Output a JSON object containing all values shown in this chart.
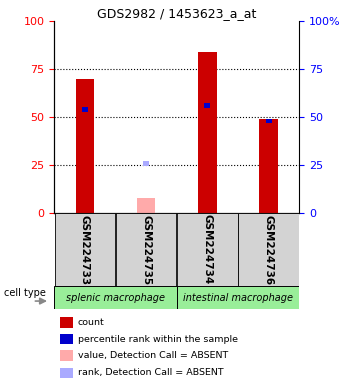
{
  "title": "GDS2982 / 1453623_a_at",
  "samples": [
    "GSM224733",
    "GSM224735",
    "GSM224734",
    "GSM224736"
  ],
  "bar_values": [
    70,
    8,
    84,
    49
  ],
  "bar_absent": [
    false,
    true,
    false,
    false
  ],
  "rank_values": [
    54,
    26,
    56,
    48
  ],
  "rank_absent": [
    false,
    true,
    false,
    false
  ],
  "bar_color": "#cc0000",
  "bar_absent_color": "#ffaaaa",
  "rank_color": "#0000cc",
  "rank_absent_color": "#aaaaff",
  "ylim": [
    0,
    100
  ],
  "group_labels": [
    "splenic macrophage",
    "intestinal macrophage"
  ],
  "group_colors": [
    "#99ee99",
    "#99ee99"
  ],
  "label_area_color": "#d3d3d3",
  "cell_type_label": "cell type",
  "legend_items": [
    {
      "color": "#cc0000",
      "label": "count"
    },
    {
      "color": "#0000cc",
      "label": "percentile rank within the sample"
    },
    {
      "color": "#ffaaaa",
      "label": "value, Detection Call = ABSENT"
    },
    {
      "color": "#aaaaff",
      "label": "rank, Detection Call = ABSENT"
    }
  ]
}
